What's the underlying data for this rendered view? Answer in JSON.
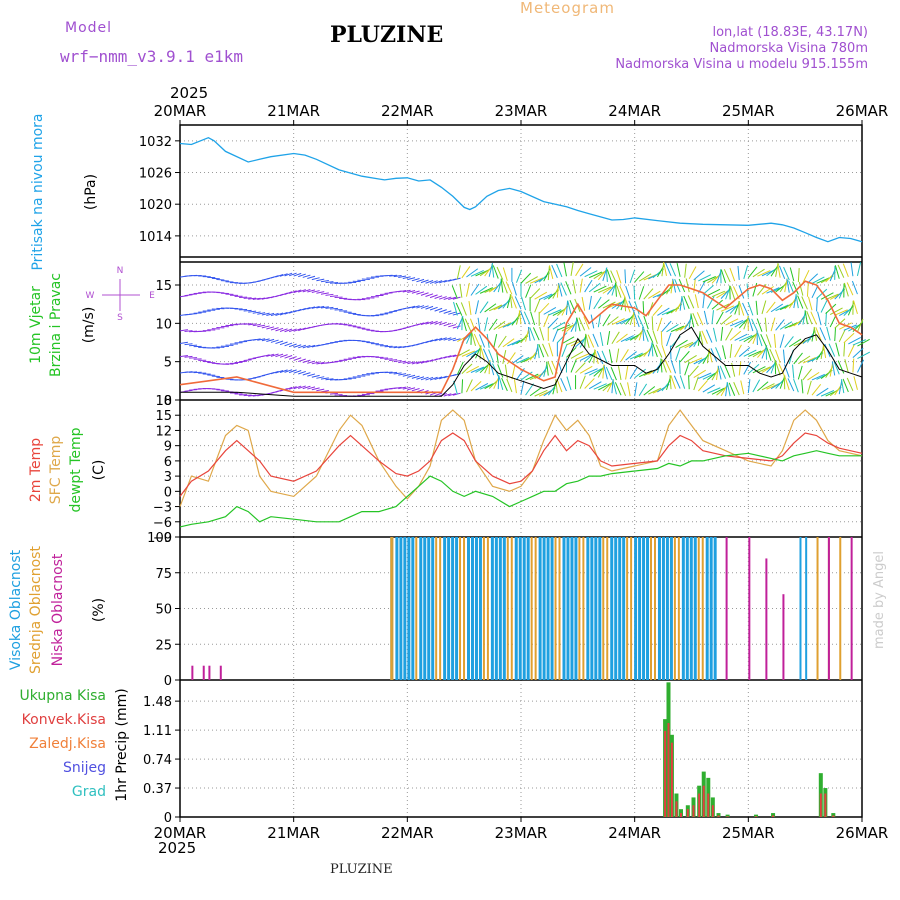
{
  "header": {
    "model_label": "Model",
    "model_name": "wrf−nmm_v3.9.1  e1km",
    "station": "PLUZINE",
    "chart_kind": "Meteogram",
    "lonlat": "lon,lat (18.83E, 43.17N)",
    "elevation": "Nadmorska Visina 780m",
    "model_elevation": "Nadmorska Visina u modelu 915.155m",
    "year_top": "2025",
    "year_bottom": "2025",
    "footer_station": "PLUZINE",
    "credit": "made by Angel"
  },
  "colors": {
    "pressure": "#1fa3e8",
    "t2m": "#e8453c",
    "sfc": "#dfa84a",
    "dewpt": "#25c425",
    "wind_speed": "#000000",
    "gust": "#f06a3a",
    "cloud_high": "#1fa0e0",
    "cloud_mid": "#e0a030",
    "cloud_low": "#c0209a",
    "precip_total": "#2fae2f",
    "precip_conv": "#e04040",
    "grid": "#9a9a9a"
  },
  "chart_data": [
    {
      "type": "line",
      "panel": "pressure",
      "title_lines": [
        "Pritisak na nivou mora",
        "(hPa)"
      ],
      "ylabel": "(hPa)",
      "ylim": [
        1010,
        1035
      ],
      "yticks": [
        "1032",
        "1026",
        "1020",
        "1014"
      ],
      "x_labels": [
        "20MAR",
        "21MAR",
        "22MAR",
        "23MAR",
        "24MAR",
        "25MAR",
        "26MAR"
      ],
      "x": [
        0,
        0.1,
        0.25,
        0.3,
        0.4,
        0.6,
        0.7,
        0.8,
        1.0,
        1.1,
        1.2,
        1.4,
        1.6,
        1.8,
        1.9,
        2.0,
        2.1,
        2.2,
        2.3,
        2.4,
        2.5,
        2.55,
        2.6,
        2.7,
        2.8,
        2.9,
        3.0,
        3.2,
        3.4,
        3.5,
        3.6,
        3.7,
        3.8,
        3.9,
        4.0,
        4.2,
        4.4,
        4.6,
        4.8,
        5.0,
        5.2,
        5.3,
        5.4,
        5.5,
        5.6,
        5.7,
        5.8,
        5.9,
        6.0
      ],
      "series": [
        {
          "values": [
            1031.5,
            1031.3,
            1032.6,
            1032.0,
            1030.0,
            1028.0,
            1028.5,
            1029.0,
            1029.6,
            1029.3,
            1028.5,
            1026.5,
            1025.3,
            1024.6,
            1024.9,
            1025.0,
            1024.4,
            1024.6,
            1023.2,
            1021.5,
            1019.4,
            1019.0,
            1019.5,
            1021.5,
            1022.6,
            1023.0,
            1022.4,
            1020.5,
            1019.5,
            1018.8,
            1018.2,
            1017.6,
            1017.0,
            1017.1,
            1017.4,
            1016.9,
            1016.4,
            1016.2,
            1016.1,
            1016.0,
            1016.4,
            1016.1,
            1015.5,
            1014.6,
            1013.7,
            1012.9,
            1013.7,
            1013.5,
            1012.9
          ]
        }
      ]
    },
    {
      "type": "line",
      "panel": "wind",
      "title_lines": [
        "10m Vjetar",
        "Brzina i Pravac",
        "(m/s)"
      ],
      "ylabel": "(m/s)",
      "ylim": [
        0,
        18
      ],
      "yticks": [
        "0",
        "5",
        "10",
        "15"
      ],
      "compass": [
        "N",
        "W",
        "E",
        "S"
      ],
      "x": [
        0,
        0.5,
        1.0,
        1.5,
        2.0,
        2.3,
        2.4,
        2.5,
        2.6,
        2.7,
        2.8,
        3.0,
        3.2,
        3.3,
        3.4,
        3.5,
        3.6,
        3.8,
        4.0,
        4.1,
        4.2,
        4.3,
        4.4,
        4.5,
        4.6,
        4.8,
        5.0,
        5.1,
        5.2,
        5.3,
        5.4,
        5.5,
        5.6,
        5.7,
        5.8,
        5.9,
        6.0
      ],
      "series": [
        {
          "name": "speed",
          "values": [
            1,
            1,
            0.5,
            0.5,
            0.5,
            0.5,
            2,
            4.5,
            6,
            5,
            3.5,
            2.5,
            1.5,
            2,
            5,
            8,
            6,
            4.5,
            4.5,
            3.5,
            4,
            6,
            8.5,
            9.5,
            7,
            4.5,
            4.5,
            3.5,
            3,
            3.5,
            6.5,
            8,
            8.5,
            6.5,
            4,
            3.5,
            3
          ]
        },
        {
          "name": "gust",
          "values": [
            2,
            3,
            1,
            1,
            1,
            1,
            4,
            8,
            9.5,
            8,
            6,
            4,
            2.5,
            3,
            10,
            12.5,
            10,
            12.5,
            12,
            11,
            13,
            15,
            15,
            14.5,
            14,
            12,
            14.5,
            15,
            14.5,
            13,
            14,
            15.5,
            15,
            13,
            10,
            9.5,
            8.5
          ]
        }
      ]
    },
    {
      "type": "line",
      "panel": "temperature",
      "title_lines": [
        "2m Temp",
        "SFC Temp",
        "dewpt Temp",
        "(C)"
      ],
      "ylabel": "(C)",
      "ylim": [
        -9,
        18
      ],
      "yticks": [
        "18",
        "15",
        "12",
        "9",
        "6",
        "3",
        "0",
        "−3",
        "−6",
        "−9"
      ],
      "x": [
        0,
        0.1,
        0.25,
        0.4,
        0.5,
        0.6,
        0.7,
        0.8,
        1.0,
        1.2,
        1.4,
        1.5,
        1.6,
        1.75,
        1.9,
        2.0,
        2.1,
        2.2,
        2.3,
        2.4,
        2.5,
        2.6,
        2.75,
        2.9,
        3.0,
        3.1,
        3.2,
        3.3,
        3.4,
        3.5,
        3.6,
        3.7,
        3.8,
        4.0,
        4.2,
        4.3,
        4.4,
        4.5,
        4.6,
        4.8,
        5.0,
        5.2,
        5.3,
        5.4,
        5.5,
        5.6,
        5.7,
        5.8,
        6.0
      ],
      "series": [
        {
          "name": "2m Temp",
          "values": [
            -1,
            2,
            4,
            8,
            10,
            8,
            6,
            3,
            2,
            4,
            9,
            11,
            9,
            6,
            3.5,
            3,
            4,
            6,
            10,
            11.5,
            10,
            6,
            3,
            1.5,
            2,
            4,
            8,
            11,
            8,
            10,
            9,
            6,
            5,
            5.5,
            6,
            9,
            11,
            10,
            8,
            7,
            6.5,
            6,
            7,
            9.5,
            11.5,
            11,
            9.5,
            8.5,
            7.5
          ]
        },
        {
          "name": "SFC Temp",
          "values": [
            -3,
            3,
            2,
            11,
            13,
            12,
            3,
            0,
            -1,
            3,
            12,
            15,
            13,
            6,
            1,
            -1.5,
            1,
            5,
            14,
            16,
            14,
            6,
            1,
            0,
            1,
            4,
            10,
            15,
            12,
            14,
            11,
            5,
            4,
            5,
            6,
            13,
            16,
            13,
            10,
            8,
            6,
            5,
            8,
            14,
            16,
            14,
            10,
            8,
            7
          ]
        },
        {
          "name": "dewpt Temp",
          "values": [
            -7,
            -6.5,
            -6,
            -5,
            -3,
            -4,
            -6,
            -5,
            -5.5,
            -6,
            -6,
            -5,
            -4,
            -4,
            -3,
            -1,
            1,
            3,
            2,
            0,
            -1,
            0,
            -1,
            -3,
            -2,
            -1,
            0,
            0,
            1.5,
            2,
            3,
            3,
            3.5,
            4,
            4.5,
            5.5,
            5,
            6,
            6,
            7,
            7.5,
            6.5,
            6,
            7,
            7.5,
            8,
            7.5,
            7,
            7
          ]
        }
      ]
    },
    {
      "type": "bar",
      "panel": "cloud",
      "title_lines": [
        "Visoka Oblacnost",
        "Srednja Oblacnost",
        "Niska Oblacnost",
        "(%)"
      ],
      "ylabel": "(%)",
      "ylim": [
        0,
        100
      ],
      "yticks": [
        "100",
        "75",
        "50",
        "25",
        "0"
      ],
      "series": [
        {
          "name": "Visoka Oblacnost",
          "x": [
            1.85,
            4.9,
            5.45,
            5.5
          ],
          "values": [
            100,
            0,
            100,
            100
          ]
        },
        {
          "name": "Srednja Oblacnost",
          "x": [
            1.85,
            5.6,
            5.7,
            5.8
          ],
          "values": [
            100,
            100,
            100,
            100
          ]
        },
        {
          "name": "Niska Oblacnost",
          "x": [
            0.1,
            0.2,
            0.25,
            0.35,
            4.8,
            5.0,
            5.15,
            5.3,
            5.7,
            5.9
          ],
          "values": [
            10,
            10,
            10,
            10,
            100,
            100,
            85,
            60,
            100,
            100
          ]
        }
      ]
    },
    {
      "type": "bar",
      "panel": "precip",
      "title_lines": [
        "Ukupna Kisa",
        "Konvek.Kisa",
        "Zaledj.Kisa",
        "Snijeg",
        "Grad",
        "1hr Precip (mm)"
      ],
      "ylabel": "1hr Precip (mm)",
      "ylim": [
        0,
        1.75
      ],
      "yticks": [
        "1.48",
        "1.11",
        "0.74",
        "0.37",
        "0"
      ],
      "x": [
        4.25,
        4.28,
        4.31,
        4.35,
        4.39,
        4.45,
        4.5,
        4.55,
        4.59,
        4.63,
        4.67,
        4.72,
        4.8,
        5.05,
        5.2,
        5.62,
        5.66,
        5.73
      ],
      "series": [
        {
          "name": "Ukupna Kisa",
          "values": [
            1.25,
            1.72,
            1.05,
            0.3,
            0.1,
            0.15,
            0.25,
            0.4,
            0.58,
            0.5,
            0.25,
            0.05,
            0.03,
            0.03,
            0.05,
            0.56,
            0.37,
            0.05
          ]
        },
        {
          "name": "Konvek.Kisa",
          "values": [
            1.1,
            1.2,
            0.95,
            0.2,
            0.05,
            0.1,
            0.15,
            0.3,
            0.4,
            0.3,
            0.15,
            0.02,
            0.01,
            0.01,
            0.02,
            0.3,
            0.3,
            0.02
          ]
        }
      ]
    }
  ]
}
